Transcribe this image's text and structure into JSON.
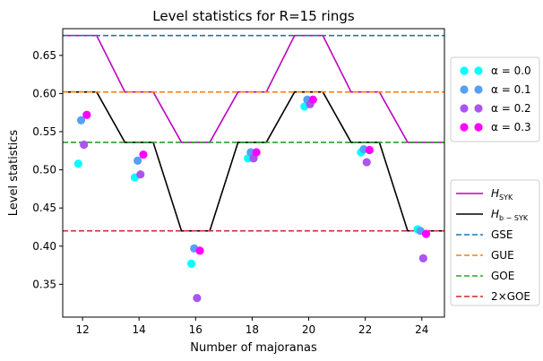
{
  "chart_data": {
    "type": "scatter",
    "title": "Level statistics for R=15 rings",
    "xlabel": "Number of majoranas",
    "ylabel": "Level statistics",
    "xlim": [
      11.3,
      24.8
    ],
    "ylim": [
      0.307,
      0.685
    ],
    "x_ticks": [
      "12",
      "14",
      "16",
      "18",
      "20",
      "22",
      "24"
    ],
    "y_ticks": [
      "0.35",
      "0.40",
      "0.45",
      "0.50",
      "0.55",
      "0.60",
      "0.65"
    ],
    "grid": false,
    "legend_scatter_position": "upper-right outside",
    "legend_lines_position": "lower-right outside",
    "scatter_series": [
      {
        "name": "α = 0.0",
        "color": "#00ffff",
        "x": [
          11.85,
          13.85,
          15.85,
          17.85,
          19.85,
          21.85,
          23.85
        ],
        "y": [
          0.508,
          0.49,
          0.377,
          0.515,
          0.583,
          0.523,
          0.422
        ]
      },
      {
        "name": "α = 0.1",
        "color": "#55a0f5",
        "x": [
          11.95,
          13.95,
          15.95,
          17.95,
          19.95,
          21.95,
          23.95
        ],
        "y": [
          0.565,
          0.512,
          0.397,
          0.523,
          0.592,
          0.527,
          0.42
        ]
      },
      {
        "name": "α = 0.2",
        "color": "#aa55f0",
        "x": [
          12.05,
          14.05,
          16.05,
          18.05,
          20.05,
          22.05,
          24.05
        ],
        "y": [
          0.533,
          0.494,
          0.332,
          0.515,
          0.586,
          0.51,
          0.384
        ]
      },
      {
        "name": "α = 0.3",
        "color": "#ff00ff",
        "x": [
          12.15,
          14.15,
          16.15,
          18.15,
          20.15,
          22.15,
          24.15
        ],
        "y": [
          0.572,
          0.52,
          0.394,
          0.523,
          0.592,
          0.526,
          0.416
        ]
      }
    ],
    "line_series": [
      {
        "name": "H_SYK",
        "label_main": "H",
        "label_sub": "SYK",
        "color": "#bf00bf",
        "dash": "solid",
        "x": [
          11.3,
          12.5,
          13.5,
          14.5,
          15.5,
          16.5,
          17.5,
          18.5,
          19.5,
          20.5,
          21.5,
          22.5,
          23.5,
          24.8
        ],
        "y": [
          0.676,
          0.676,
          0.602,
          0.602,
          0.536,
          0.536,
          0.602,
          0.602,
          0.676,
          0.676,
          0.602,
          0.602,
          0.536,
          0.536
        ]
      },
      {
        "name": "H_b−SYK",
        "label_main": "H",
        "label_sub": "b − SYK",
        "color": "#000000",
        "dash": "solid",
        "x": [
          11.3,
          12.5,
          13.5,
          14.5,
          15.5,
          16.5,
          17.5,
          18.5,
          19.5,
          20.5,
          21.5,
          22.5,
          23.5,
          24.8
        ],
        "y": [
          0.602,
          0.602,
          0.536,
          0.536,
          0.42,
          0.42,
          0.536,
          0.536,
          0.602,
          0.602,
          0.536,
          0.536,
          0.42,
          0.42
        ]
      },
      {
        "name": "GSE",
        "label_main": "GSE",
        "label_sub": "",
        "color": "#1f77b4",
        "dash": "dashed",
        "x": [
          11.3,
          24.8
        ],
        "y": [
          0.676,
          0.676
        ]
      },
      {
        "name": "GUE",
        "label_main": "GUE",
        "label_sub": "",
        "color": "#ff7f0e",
        "dash": "dashed",
        "x": [
          11.3,
          24.8
        ],
        "y": [
          0.602,
          0.602
        ]
      },
      {
        "name": "GOE",
        "label_main": "GOE",
        "label_sub": "",
        "color": "#2ca02c",
        "dash": "dashed",
        "x": [
          11.3,
          24.8
        ],
        "y": [
          0.536,
          0.536
        ]
      },
      {
        "name": "2×GOE",
        "label_main": "2×GOE",
        "label_sub": "",
        "color": "#d62728",
        "dash": "dashed",
        "x": [
          11.3,
          24.8
        ],
        "y": [
          0.42,
          0.42
        ]
      }
    ]
  }
}
